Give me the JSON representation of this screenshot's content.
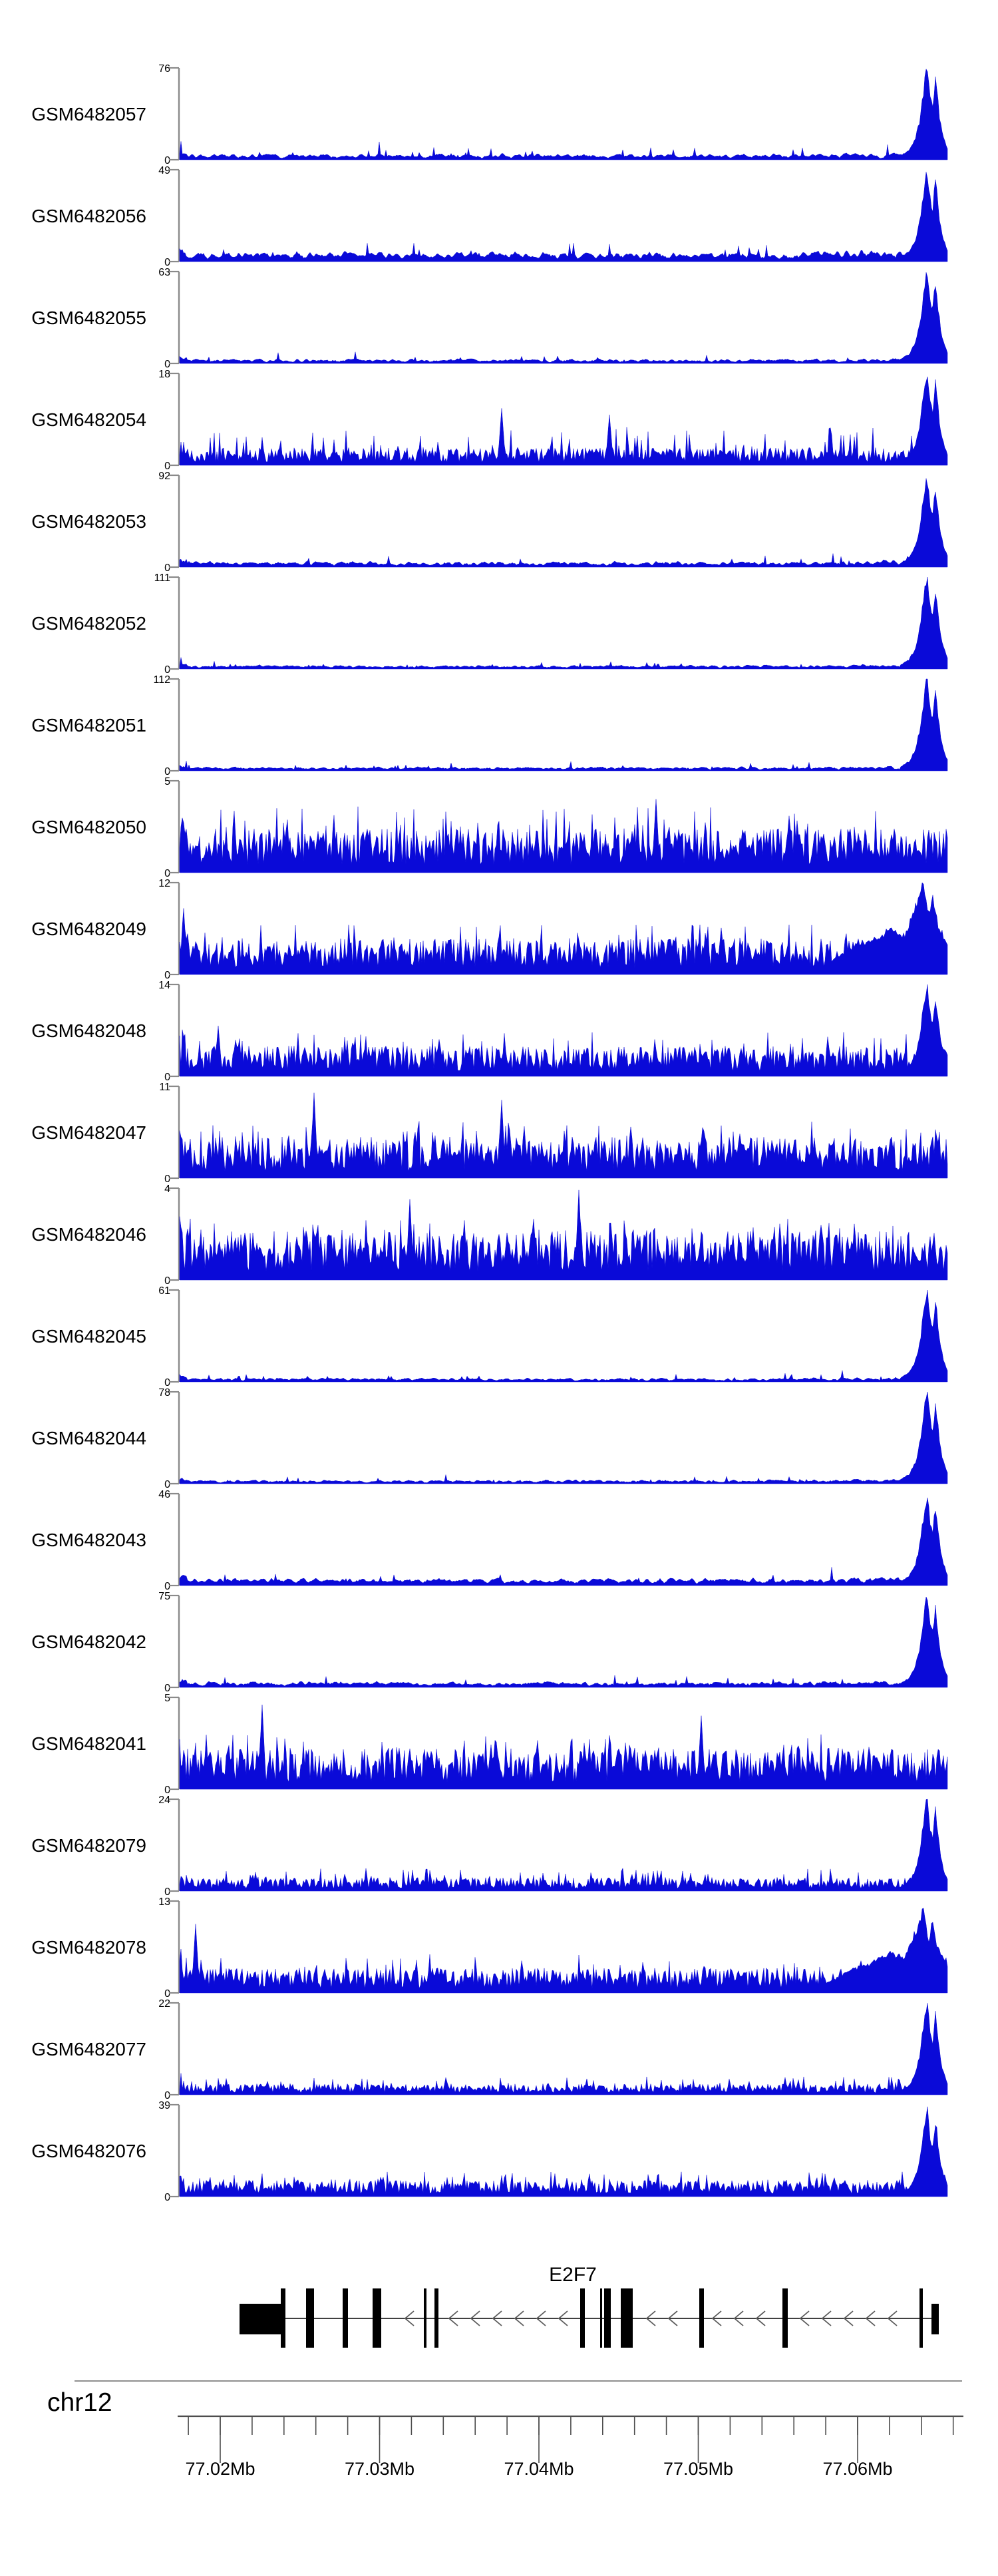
{
  "figure": {
    "background": "#ffffff",
    "signal_color": "#0a0ad8",
    "axis_color": "#8a8a8a",
    "ruler_color": "#4d4d4d",
    "chevron_color": "#5a5a5a",
    "exon_color": "#000000",
    "text_color": "#000000"
  },
  "ruler": {
    "chromosome": "chr12",
    "tick_labels": [
      "77.02Mb",
      "77.03Mb",
      "77.04Mb",
      "77.05Mb",
      "77.06Mb"
    ],
    "tick_values_mb": [
      77.02,
      77.03,
      77.04,
      77.05,
      77.06
    ],
    "minor_tick_interval_mb": 0.002,
    "axis_start_mb": 77.0173,
    "axis_end_mb": 77.0667
  },
  "gene_track": {
    "gene_name": "E2F7",
    "strand": "minus",
    "arrow_direction": "left",
    "exons": [
      {
        "x": 360,
        "w": 66,
        "half": true
      },
      {
        "x": 422,
        "w": 7,
        "half": false
      },
      {
        "x": 460,
        "w": 12,
        "half": false
      },
      {
        "x": 515,
        "w": 8,
        "half": false
      },
      {
        "x": 560,
        "w": 13,
        "half": false
      },
      {
        "x": 637,
        "w": 4,
        "half": false
      },
      {
        "x": 653,
        "w": 6,
        "half": false
      },
      {
        "x": 872,
        "w": 7,
        "half": false
      },
      {
        "x": 902,
        "w": 3,
        "half": false
      },
      {
        "x": 908,
        "w": 10,
        "half": false
      },
      {
        "x": 933,
        "w": 18,
        "half": false
      },
      {
        "x": 1051,
        "w": 7,
        "half": false
      },
      {
        "x": 1176,
        "w": 8,
        "half": false
      },
      {
        "x": 1382,
        "w": 5,
        "half": false
      },
      {
        "x": 1400,
        "w": 11,
        "half": true
      }
    ]
  },
  "tracks": [
    {
      "label": "GSM6482057",
      "ymax": 76,
      "ymin": 0,
      "profile": "quiet",
      "base": 0.045,
      "spike": 0.1,
      "peak": 1.0,
      "peak_style": "sharp",
      "seed": 11,
      "spikes": []
    },
    {
      "label": "GSM6482056",
      "ymax": 49,
      "ymin": 0,
      "profile": "quiet",
      "base": 0.075,
      "spike": 0.16,
      "peak": 1.0,
      "peak_style": "sharp",
      "seed": 12,
      "spikes": []
    },
    {
      "label": "GSM6482055",
      "ymax": 63,
      "ymin": 0,
      "profile": "quiet",
      "base": 0.035,
      "spike": 0.09,
      "peak": 1.0,
      "peak_style": "sharp",
      "seed": 13,
      "spikes": []
    },
    {
      "label": "GSM6482054",
      "ymax": 18,
      "ymin": 0,
      "profile": "noisy",
      "base": 0.13,
      "spike": 0.42,
      "peak": 1.0,
      "peak_style": "sharp",
      "seed": 14,
      "spikes": [
        {
          "t": 0.42,
          "h": 0.62
        },
        {
          "t": 0.56,
          "h": 0.55
        }
      ]
    },
    {
      "label": "GSM6482053",
      "ymax": 92,
      "ymin": 0,
      "profile": "quiet",
      "base": 0.045,
      "spike": 0.1,
      "peak": 1.0,
      "peak_style": "sharp",
      "seed": 15,
      "spikes": []
    },
    {
      "label": "GSM6482052",
      "ymax": 111,
      "ymin": 0,
      "profile": "quiet",
      "base": 0.03,
      "spike": 0.07,
      "peak": 1.0,
      "peak_style": "sharp",
      "seed": 16,
      "spikes": []
    },
    {
      "label": "GSM6482051",
      "ymax": 112,
      "ymin": 0,
      "profile": "quiet",
      "base": 0.03,
      "spike": 0.07,
      "peak": 1.0,
      "peak_style": "sharp",
      "seed": 17,
      "spikes": []
    },
    {
      "label": "GSM6482050",
      "ymax": 5,
      "ymin": 0,
      "profile": "noisy",
      "base": 0.32,
      "spike": 0.72,
      "peak": 0.0,
      "peak_style": "none",
      "seed": 18,
      "spikes": [
        {
          "t": 0.62,
          "h": 0.8
        }
      ]
    },
    {
      "label": "GSM6482049",
      "ymax": 12,
      "ymin": 0,
      "profile": "noisy",
      "base": 0.26,
      "spike": 0.55,
      "peak": 1.0,
      "peak_style": "broad",
      "seed": 19,
      "spikes": [
        {
          "t": 0.005,
          "h": 0.72
        }
      ]
    },
    {
      "label": "GSM6482048",
      "ymax": 14,
      "ymin": 0,
      "profile": "noisy",
      "base": 0.22,
      "spike": 0.48,
      "peak": 1.0,
      "peak_style": "sharp",
      "seed": 20,
      "spikes": [
        {
          "t": 0.05,
          "h": 0.55
        }
      ]
    },
    {
      "label": "GSM6482047",
      "ymax": 11,
      "ymin": 0,
      "profile": "noisy",
      "base": 0.3,
      "spike": 0.62,
      "peak": 0.0,
      "peak_style": "none",
      "seed": 21,
      "spikes": [
        {
          "t": 0.175,
          "h": 0.93
        },
        {
          "t": 0.42,
          "h": 0.85
        }
      ]
    },
    {
      "label": "GSM6482046",
      "ymax": 4,
      "ymin": 0,
      "profile": "noisy",
      "base": 0.36,
      "spike": 0.7,
      "peak": 0.0,
      "peak_style": "none",
      "seed": 22,
      "spikes": [
        {
          "t": 0.3,
          "h": 0.88
        },
        {
          "t": 0.52,
          "h": 0.98
        }
      ]
    },
    {
      "label": "GSM6482045",
      "ymax": 61,
      "ymin": 0,
      "profile": "quiet",
      "base": 0.03,
      "spike": 0.06,
      "peak": 1.0,
      "peak_style": "sharp",
      "seed": 23,
      "spikes": []
    },
    {
      "label": "GSM6482044",
      "ymax": 78,
      "ymin": 0,
      "profile": "quiet",
      "base": 0.03,
      "spike": 0.06,
      "peak": 1.0,
      "peak_style": "sharp",
      "seed": 24,
      "spikes": []
    },
    {
      "label": "GSM6482043",
      "ymax": 46,
      "ymin": 0,
      "profile": "quiet",
      "base": 0.055,
      "spike": 0.12,
      "peak": 1.0,
      "peak_style": "sharp",
      "seed": 25,
      "spikes": []
    },
    {
      "label": "GSM6482042",
      "ymax": 75,
      "ymin": 0,
      "profile": "quiet",
      "base": 0.045,
      "spike": 0.1,
      "peak": 1.0,
      "peak_style": "sharp",
      "seed": 26,
      "spikes": []
    },
    {
      "label": "GSM6482041",
      "ymax": 5,
      "ymin": 0,
      "profile": "noisy",
      "base": 0.3,
      "spike": 0.6,
      "peak": 0.0,
      "peak_style": "none",
      "seed": 27,
      "spikes": [
        {
          "t": 0.107,
          "h": 0.92
        },
        {
          "t": 0.68,
          "h": 0.8
        }
      ]
    },
    {
      "label": "GSM6482079",
      "ymax": 24,
      "ymin": 0,
      "profile": "noisy",
      "base": 0.1,
      "spike": 0.25,
      "peak": 1.0,
      "peak_style": "sharp",
      "seed": 28,
      "spikes": []
    },
    {
      "label": "GSM6482078",
      "ymax": 13,
      "ymin": 0,
      "profile": "noisy",
      "base": 0.18,
      "spike": 0.42,
      "peak": 0.9,
      "peak_style": "broad",
      "seed": 29,
      "spikes": [
        {
          "t": 0.02,
          "h": 0.75
        }
      ]
    },
    {
      "label": "GSM6482077",
      "ymax": 22,
      "ymin": 0,
      "profile": "noisy",
      "base": 0.08,
      "spike": 0.2,
      "peak": 1.0,
      "peak_style": "sharp",
      "seed": 30,
      "spikes": []
    },
    {
      "label": "GSM6482076",
      "ymax": 39,
      "ymin": 0,
      "profile": "noisy",
      "base": 0.12,
      "spike": 0.28,
      "peak": 0.95,
      "peak_style": "sharp",
      "seed": 31,
      "spikes": []
    }
  ],
  "chart_data": {
    "type": "area",
    "title": "",
    "description": "Genome browser coverage tracks (read pile-up signal) over the E2F7 locus",
    "x_axis": {
      "chromosome": "chr12",
      "start_mb": 77.0173,
      "end_mb": 77.0667,
      "tick_labels": [
        "77.02Mb",
        "77.03Mb",
        "77.04Mb",
        "77.05Mb",
        "77.06Mb"
      ],
      "minor_tick_interval_mb": 0.002
    },
    "tracks": [
      {
        "name": "GSM6482057",
        "y_range": [
          0,
          76
        ],
        "pattern": "low background, sharp peak at right end"
      },
      {
        "name": "GSM6482056",
        "y_range": [
          0,
          49
        ],
        "pattern": "low background, sharp peak at right end"
      },
      {
        "name": "GSM6482055",
        "y_range": [
          0,
          63
        ],
        "pattern": "low background, sharp peak at right end"
      },
      {
        "name": "GSM6482054",
        "y_range": [
          0,
          18
        ],
        "pattern": "moderate spiky background, peak at right end"
      },
      {
        "name": "GSM6482053",
        "y_range": [
          0,
          92
        ],
        "pattern": "low background, sharp peak at right end"
      },
      {
        "name": "GSM6482052",
        "y_range": [
          0,
          111
        ],
        "pattern": "low background, sharp peak at right end"
      },
      {
        "name": "GSM6482051",
        "y_range": [
          0,
          112
        ],
        "pattern": "low background, sharp peak at right end"
      },
      {
        "name": "GSM6482050",
        "y_range": [
          0,
          5
        ],
        "pattern": "dense spiky signal across whole locus"
      },
      {
        "name": "GSM6482049",
        "y_range": [
          0,
          12
        ],
        "pattern": "dense spiky signal, enriched at right end"
      },
      {
        "name": "GSM6482048",
        "y_range": [
          0,
          14
        ],
        "pattern": "dense spiky signal, sharp spike at right end"
      },
      {
        "name": "GSM6482047",
        "y_range": [
          0,
          11
        ],
        "pattern": "dense spiky signal across whole locus"
      },
      {
        "name": "GSM6482046",
        "y_range": [
          0,
          4
        ],
        "pattern": "dense spiky signal across whole locus"
      },
      {
        "name": "GSM6482045",
        "y_range": [
          0,
          61
        ],
        "pattern": "low background, sharp peak at right end"
      },
      {
        "name": "GSM6482044",
        "y_range": [
          0,
          78
        ],
        "pattern": "low background, sharp peak at right end"
      },
      {
        "name": "GSM6482043",
        "y_range": [
          0,
          46
        ],
        "pattern": "low background, sharp peak at right end"
      },
      {
        "name": "GSM6482042",
        "y_range": [
          0,
          75
        ],
        "pattern": "low background, sharp peak at right end"
      },
      {
        "name": "GSM6482041",
        "y_range": [
          0,
          5
        ],
        "pattern": "dense spiky signal across whole locus"
      },
      {
        "name": "GSM6482079",
        "y_range": [
          0,
          24
        ],
        "pattern": "low spiky background, peak at right end"
      },
      {
        "name": "GSM6482078",
        "y_range": [
          0,
          13
        ],
        "pattern": "moderate spiky background, enriched at right end"
      },
      {
        "name": "GSM6482077",
        "y_range": [
          0,
          22
        ],
        "pattern": "low background, peak at right end"
      },
      {
        "name": "GSM6482076",
        "y_range": [
          0,
          39
        ],
        "pattern": "low spiky background, peak at right end"
      }
    ],
    "gene_annotation": {
      "name": "E2F7",
      "chromosome": "chr12",
      "strand": "-",
      "transcription_direction": "left",
      "approx_span_mb": [
        77.0212,
        77.0651
      ],
      "exon_count": 15
    },
    "series_color": "#0a0ad8",
    "legend": "none",
    "grid": "off"
  }
}
